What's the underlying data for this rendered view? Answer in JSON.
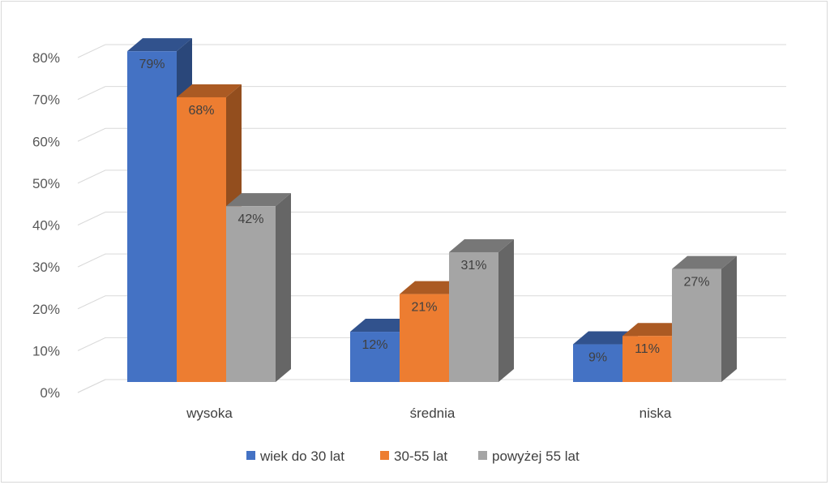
{
  "chart_data": {
    "type": "bar",
    "style": "3d-clustered-column",
    "categories": [
      "wysoka",
      "średnia",
      "niska"
    ],
    "series": [
      {
        "name": "wiek do 30 lat",
        "values": [
          79,
          12,
          9
        ],
        "color": "#4472c4"
      },
      {
        "name": "30-55 lat",
        "values": [
          68,
          21,
          11
        ],
        "color": "#ed7d31"
      },
      {
        "name": "powyżej 55 lat",
        "values": [
          42,
          31,
          27
        ],
        "color": "#a5a5a5"
      }
    ],
    "y_ticks": [
      "0%",
      "10%",
      "20%",
      "30%",
      "40%",
      "50%",
      "60%",
      "70%",
      "80%"
    ],
    "ylim": [
      0,
      80
    ],
    "y_unit": "%",
    "grid": true,
    "legend_position": "bottom",
    "data_labels": [
      [
        "79%",
        "12%",
        "9%"
      ],
      [
        "68%",
        "21%",
        "11%"
      ],
      [
        "42%",
        "31%",
        "27%"
      ]
    ]
  }
}
